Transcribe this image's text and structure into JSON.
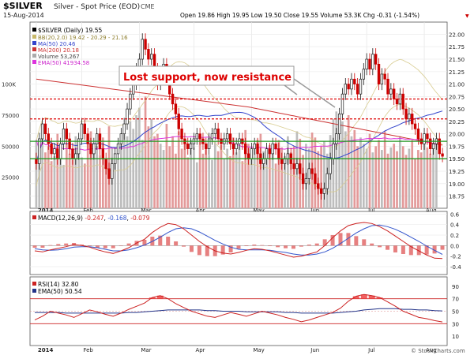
{
  "header": {
    "symbol": "$SILVER",
    "description": "Silver - Spot Price (EOD)",
    "exchange": "CME",
    "date": "15-Aug-2014",
    "ohlc": "Open 19.86  High 19.95  Low 19.50  Close 19.55  Volume 53.3K  Chg -0.31 (-1.54%)",
    "change_arrow": "▼"
  },
  "price_legend": [
    {
      "text": "$SILVER (Daily) 19.55",
      "color": "#000000"
    },
    {
      "text": "BB(20,2.0) 19.42 - 20.29 - 21.16",
      "color": "#c8b96a"
    },
    {
      "text": "MA(50) 20.46",
      "color": "#3344cc"
    },
    {
      "text": "MA(200) 20.18",
      "color": "#cc3333"
    },
    {
      "text": "Volume 53,267",
      "color": "#888888"
    },
    {
      "text": "EMA(50) 41934.58",
      "color": "#dd33dd"
    }
  ],
  "annotation": {
    "text": "Lost support, now resistance"
  },
  "macd_legend": {
    "label": "MACD(12,26,9)",
    "v1": "-0.247",
    "v2": "-0.168",
    "v3": "-0.079",
    "sep1": ",",
    "sep2": ","
  },
  "rsi_legend": {
    "rsi": "RSI(14) 32.80",
    "ema": "EMA(50) 50.54"
  },
  "watermark": "© StockCharts.com",
  "colors": {
    "up": "#1a1a1a",
    "down": "#cc0000",
    "ma50": "#3344cc",
    "ma200": "#cc3333",
    "bb": "#d8cc90",
    "volume": "#b5b5b5",
    "macd_line": "#cc2222",
    "signal_line": "#3355cc",
    "histogram": "#e06060",
    "rsi_line": "#cc2222",
    "rsi_ema": "#223388",
    "resist": "#dd0000",
    "support": "#229922"
  },
  "chart_data": [
    {
      "type": "candlestick",
      "panel": "price",
      "x_tick_labels": [
        "2014",
        "Feb",
        "Mar",
        "Apr",
        "May",
        "Jun",
        "Jul",
        "Aug"
      ],
      "y_tick_labels": [
        "22.00",
        "21.75",
        "21.50",
        "21.25",
        "21.00",
        "20.75",
        "20.50",
        "20.25",
        "20.00",
        "19.75",
        "19.50",
        "19.25",
        "19.00",
        "18.75"
      ],
      "ylim": [
        18.6,
        22.15
      ],
      "volume_tick_labels": [
        "100K",
        "75000",
        "50000",
        "25000"
      ],
      "volume_ylim": [
        0,
        150000
      ],
      "horizontal_lines": [
        {
          "value": 20.7,
          "style": "dashed",
          "color": "#dd0000"
        },
        {
          "value": 20.3,
          "style": "dashed",
          "color": "#dd0000"
        },
        {
          "value": 19.85,
          "style": "solid",
          "color": "#229922"
        },
        {
          "value": 19.5,
          "style": "solid",
          "color": "#229922"
        }
      ],
      "closes": [
        19.4,
        19.9,
        20.2,
        20.0,
        19.8,
        19.6,
        19.7,
        19.5,
        19.8,
        20.1,
        19.9,
        19.7,
        19.5,
        19.6,
        19.9,
        20.2,
        20.0,
        19.8,
        19.6,
        19.8,
        20.0,
        19.7,
        19.5,
        19.3,
        19.1,
        19.4,
        19.6,
        19.8,
        20.0,
        20.2,
        20.5,
        20.8,
        21.0,
        21.3,
        21.5,
        21.9,
        21.7,
        21.5,
        21.6,
        21.3,
        21.0,
        21.2,
        21.4,
        21.2,
        20.8,
        20.6,
        20.4,
        20.1,
        19.9,
        19.8,
        19.7,
        19.8,
        19.9,
        20.0,
        19.9,
        19.8,
        19.7,
        19.9,
        20.0,
        20.1,
        19.9,
        19.8,
        19.9,
        20.0,
        19.8,
        19.7,
        19.8,
        19.9,
        19.8,
        19.6,
        19.5,
        19.7,
        19.8,
        19.6,
        19.4,
        19.5,
        19.7,
        19.6,
        19.8,
        19.7,
        19.5,
        19.4,
        19.5,
        19.6,
        19.4,
        19.3,
        19.4,
        19.2,
        19.0,
        19.1,
        19.3,
        19.2,
        19.0,
        18.9,
        18.8,
        18.9,
        19.2,
        19.5,
        19.8,
        20.0,
        20.4,
        20.8,
        21.0,
        20.9,
        21.1,
        21.0,
        20.8,
        21.1,
        21.3,
        21.5,
        21.3,
        21.6,
        21.4,
        21.0,
        21.2,
        21.1,
        20.8,
        20.9,
        20.7,
        20.6,
        20.8,
        20.5,
        20.3,
        20.4,
        20.2,
        20.1,
        19.9,
        19.8,
        20.0,
        19.9,
        19.7,
        19.8,
        19.9,
        19.6,
        19.55
      ],
      "volumes": [
        55000,
        40000,
        65000,
        45000,
        50000,
        38000,
        42000,
        60000,
        48000,
        35000,
        52000,
        44000,
        39000,
        58000,
        47000,
        41000,
        36000,
        55000,
        62000,
        45000,
        50000,
        43000,
        57000,
        38000,
        66000,
        49000,
        44000,
        40000,
        53000,
        61000,
        58000,
        70000,
        64000,
        75000,
        81000,
        55000,
        90000,
        66000,
        72000,
        58000,
        60000,
        52000,
        47000,
        68000,
        50000,
        58000,
        44000,
        62000,
        48000,
        52000,
        41000,
        55000,
        49000,
        37000,
        58000,
        44000,
        50000,
        43000,
        39000,
        54000,
        46000,
        51000,
        40000,
        48000,
        42000,
        57000,
        45000,
        50000,
        38000,
        63000,
        52000,
        44000,
        48000,
        55000,
        60000,
        46000,
        39000,
        51000,
        47000,
        36000,
        55000,
        49000,
        42000,
        58000,
        45000,
        50000,
        62000,
        56000,
        43000,
        52000,
        48000,
        61000,
        57000,
        46000,
        50000,
        54000,
        44000,
        59000,
        72000,
        78000,
        66000,
        70000,
        62000,
        75000,
        58000,
        63000,
        50000,
        57000,
        52000,
        48000,
        60000,
        45000,
        50000,
        55000,
        47000,
        62000,
        44000,
        49000,
        52000,
        46000,
        58000,
        50000,
        43000,
        48000,
        55000,
        40000,
        47000,
        45000,
        52000,
        49000,
        44000,
        50000,
        53267
      ]
    },
    {
      "type": "line",
      "panel": "macd",
      "title": "MACD(12,26,9)",
      "y_tick_labels": [
        "0.6",
        "0.4",
        "0.2",
        "0.0",
        "-0.2",
        "-0.4"
      ],
      "ylim": [
        -0.55,
        0.65
      ],
      "series": [
        {
          "name": "MACD",
          "values": [
            -0.1,
            -0.12,
            -0.08,
            -0.05,
            -0.02,
            0.02,
            0.0,
            -0.03,
            -0.08,
            -0.12,
            -0.15,
            -0.1,
            -0.04,
            0.05,
            0.12,
            0.25,
            0.35,
            0.42,
            0.4,
            0.32,
            0.2,
            0.08,
            -0.02,
            -0.1,
            -0.14,
            -0.16,
            -0.13,
            -0.09,
            -0.06,
            -0.07,
            -0.1,
            -0.14,
            -0.18,
            -0.22,
            -0.2,
            -0.16,
            -0.12,
            0.0,
            0.15,
            0.28,
            0.38,
            0.42,
            0.44,
            0.42,
            0.36,
            0.28,
            0.18,
            0.08,
            -0.02,
            -0.1,
            -0.18,
            -0.24,
            -0.247
          ]
        },
        {
          "name": "Signal",
          "values": [
            -0.06,
            -0.08,
            -0.09,
            -0.08,
            -0.06,
            -0.03,
            -0.02,
            -0.02,
            -0.04,
            -0.07,
            -0.1,
            -0.1,
            -0.08,
            -0.04,
            0.01,
            0.08,
            0.16,
            0.25,
            0.32,
            0.34,
            0.32,
            0.26,
            0.18,
            0.1,
            0.03,
            -0.03,
            -0.07,
            -0.08,
            -0.08,
            -0.08,
            -0.09,
            -0.11,
            -0.13,
            -0.16,
            -0.18,
            -0.18,
            -0.16,
            -0.12,
            -0.05,
            0.04,
            0.14,
            0.24,
            0.32,
            0.38,
            0.39,
            0.36,
            0.31,
            0.24,
            0.16,
            0.08,
            -0.01,
            -0.09,
            -0.168
          ]
        }
      ]
    },
    {
      "type": "line",
      "panel": "rsi",
      "title": "RSI(14)",
      "y_tick_labels": [
        "90",
        "70",
        "50",
        "30",
        "10"
      ],
      "ylim": [
        0,
        100
      ],
      "reference_lines": [
        70,
        30
      ],
      "series": [
        {
          "name": "RSI(14)",
          "values": [
            36,
            42,
            50,
            47,
            44,
            40,
            46,
            52,
            49,
            45,
            42,
            47,
            53,
            58,
            63,
            72,
            75,
            70,
            62,
            56,
            50,
            46,
            42,
            40,
            44,
            48,
            45,
            42,
            46,
            50,
            47,
            44,
            40,
            37,
            33,
            36,
            40,
            44,
            48,
            55,
            66,
            74,
            77,
            75,
            72,
            65,
            58,
            50,
            45,
            40,
            38,
            35,
            32.8
          ]
        },
        {
          "name": "EMA(50)",
          "values": [
            48,
            48,
            48,
            48,
            47,
            47,
            47,
            47,
            47,
            47,
            47,
            47,
            48,
            48,
            49,
            50,
            51,
            52,
            52,
            52,
            52,
            52,
            51,
            51,
            50,
            50,
            50,
            49,
            49,
            49,
            49,
            49,
            48,
            48,
            47,
            47,
            47,
            47,
            47,
            48,
            49,
            50,
            52,
            53,
            54,
            54,
            54,
            53,
            53,
            52,
            52,
            51,
            50.54
          ]
        }
      ]
    }
  ]
}
